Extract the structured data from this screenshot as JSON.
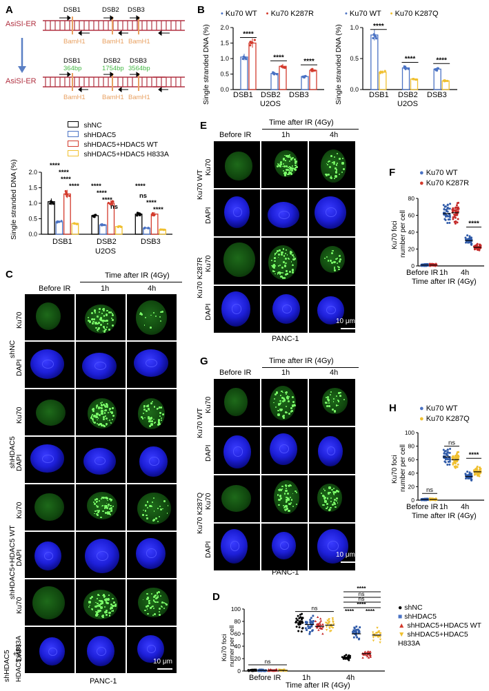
{
  "panelA": {
    "letter": "A",
    "asisi": "AsiSI-ER",
    "dsb": [
      "DSB1",
      "DSB2",
      "DSB3"
    ],
    "bamh1": "BamH1",
    "sizes": [
      "364bp",
      "1754bp",
      "3564bp"
    ],
    "legend": [
      "shNC",
      "shHDAC5",
      "shHDAC5+HDAC5 WT",
      "shHDAC5+HDAC5 H833A"
    ],
    "ylabel": "Single stranded DNA (%)",
    "xcats": [
      "DSB1",
      "DSB2",
      "DSB3"
    ],
    "xsub": "U2OS",
    "sig": [
      "****",
      "****",
      "****",
      "****",
      "****",
      "****",
      "****",
      "ns",
      "****",
      "ns",
      "****",
      "****"
    ],
    "colors": [
      "#000000",
      "#4a72c4",
      "#d33a2c",
      "#f0c030"
    ]
  },
  "panelB": {
    "letter": "B",
    "left_legend": [
      "Ku70 WT",
      "Ku70 K287R"
    ],
    "right_legend": [
      "Ku70 WT",
      "Ku70 K287Q"
    ],
    "ylabel": "Single stranded DNA (%)",
    "xcats": [
      "DSB1",
      "DSB2",
      "DSB3"
    ],
    "xsub": "U2OS",
    "sig": "****",
    "colors": {
      "wt": "#4a72c4",
      "k287r": "#d33a2c",
      "k287q": "#f0c030"
    }
  },
  "panelC": {
    "letter": "C",
    "time_header": "Time after IR (4Gy)",
    "cols": [
      "Before IR",
      "1h",
      "4h"
    ],
    "row_labels": [
      "Ku70",
      "DAPI"
    ],
    "groups": [
      "shNC",
      "shHDAC5",
      "shHDAC5+HDAC5 WT",
      "shHDAC5\n+\nHDAC5 H833A"
    ],
    "group_l1": "shHDAC5",
    "group_l2": "+",
    "group_l3": "HDAC5 H833A",
    "scale": "10 μm",
    "cellline": "PANC-1"
  },
  "panelD": {
    "letter": "D",
    "ylabel1": "Ku70 foci",
    "ylabel2": "numer per cell",
    "xcats": [
      "Before IR",
      "1h",
      "4h"
    ],
    "xtitle": "Time after IR (4Gy)",
    "legend": [
      "shNC",
      "shHDAC5",
      "shHDAC5+HDAC5 WT",
      "shHDAC5+HDAC5 H833A"
    ],
    "ns": "ns",
    "stars": "****"
  },
  "panelE": {
    "letter": "E",
    "time_header": "Time after IR (4Gy)",
    "cols": [
      "Before IR",
      "1h",
      "4h"
    ],
    "row_labels": [
      "Ku70",
      "DAPI"
    ],
    "groups": [
      "Ku70 WT",
      "Ku70 K287R"
    ],
    "scale": "10 μm",
    "cellline": "PANC-1"
  },
  "panelF": {
    "letter": "F",
    "legend": [
      "Ku70 WT",
      "Ku70 K287R"
    ],
    "ylabel1": "Ku70 foci",
    "ylabel2": "number per cell",
    "xcats": [
      "Before IR",
      "1h",
      "4h"
    ],
    "xtitle": "Time after IR (4Gy)",
    "sig": "****"
  },
  "panelG": {
    "letter": "G",
    "time_header": "Time after IR (4Gy)",
    "cols": [
      "Before IR",
      "1h",
      "4h"
    ],
    "row_labels": [
      "Ku70",
      "DAPI"
    ],
    "groups": [
      "Ku70 WT",
      "Ku70 K287Q"
    ],
    "scale": "10 μm",
    "cellline": "PANC-1"
  },
  "panelH": {
    "letter": "H",
    "legend": [
      "Ku70 WT",
      "Ku70 K287Q"
    ],
    "ylabel1": "Ku70 foci",
    "ylabel2": "number per cell",
    "xcats": [
      "Before IR",
      "1h",
      "4h"
    ],
    "xtitle": "Time after IR (4Gy)",
    "sig": [
      "ns",
      "ns",
      "****"
    ]
  },
  "chart_data": [
    {
      "type": "bar",
      "panel": "A",
      "categories": [
        "DSB1",
        "DSB2",
        "DSB3"
      ],
      "series": [
        {
          "name": "shNC",
          "values": [
            1.05,
            0.6,
            0.65
          ]
        },
        {
          "name": "shHDAC5",
          "values": [
            0.4,
            0.3,
            0.2
          ]
        },
        {
          "name": "shHDAC5+HDAC5 WT",
          "values": [
            1.3,
            1.0,
            0.65
          ]
        },
        {
          "name": "shHDAC5+HDAC5 H833A",
          "values": [
            0.35,
            0.25,
            0.15
          ]
        }
      ],
      "ylabel": "Single stranded DNA (%)",
      "ylim": [
        0,
        2.0
      ],
      "yticks": [
        0.0,
        0.5,
        1.0,
        1.5,
        2.0
      ]
    },
    {
      "type": "bar",
      "panel": "B-left",
      "categories": [
        "DSB1",
        "DSB2",
        "DSB3"
      ],
      "series": [
        {
          "name": "Ku70 WT",
          "values": [
            1.05,
            0.52,
            0.42
          ]
        },
        {
          "name": "Ku70 K287R",
          "values": [
            1.5,
            0.75,
            0.62
          ]
        }
      ],
      "ylabel": "Single stranded DNA (%)",
      "ylim": [
        0,
        2.0
      ],
      "yticks": [
        0.0,
        0.5,
        1.0,
        1.5,
        2.0
      ]
    },
    {
      "type": "bar",
      "panel": "B-right",
      "categories": [
        "DSB1",
        "DSB2",
        "DSB3"
      ],
      "series": [
        {
          "name": "Ku70 WT",
          "values": [
            0.88,
            0.35,
            0.33
          ]
        },
        {
          "name": "Ku70 K287Q",
          "values": [
            0.28,
            0.17,
            0.14
          ]
        }
      ],
      "ylabel": "Single stranded DNA (%)",
      "ylim": [
        0,
        1.0
      ],
      "yticks": [
        0.0,
        0.5,
        1.0
      ]
    },
    {
      "type": "scatter",
      "panel": "D",
      "categories": [
        "Before IR",
        "1h",
        "4h"
      ],
      "series": [
        {
          "name": "shNC",
          "values": [
            1,
            78,
            22
          ]
        },
        {
          "name": "shHDAC5",
          "values": [
            1,
            75,
            60
          ]
        },
        {
          "name": "shHDAC5+HDAC5 WT",
          "values": [
            1,
            72,
            28
          ]
        },
        {
          "name": "shHDAC5+HDAC5 H833A",
          "values": [
            1,
            74,
            58
          ]
        }
      ],
      "ylabel": "Ku70 foci numer per cell",
      "xlabel": "Time after IR (4Gy)",
      "ylim": [
        0,
        100
      ],
      "yticks": [
        0,
        20,
        40,
        60,
        80,
        100
      ]
    },
    {
      "type": "scatter",
      "panel": "F",
      "categories": [
        "Before IR",
        "1h",
        "4h"
      ],
      "series": [
        {
          "name": "Ku70 WT",
          "values": [
            1,
            62,
            30
          ]
        },
        {
          "name": "Ku70 K287R",
          "values": [
            1,
            63,
            22
          ]
        }
      ],
      "ylabel": "Ku70 foci number per cell",
      "xlabel": "Time after IR (4Gy)",
      "ylim": [
        0,
        80
      ],
      "yticks": [
        0,
        20,
        40,
        60,
        80
      ]
    },
    {
      "type": "scatter",
      "panel": "H",
      "categories": [
        "Before IR",
        "1h",
        "4h"
      ],
      "series": [
        {
          "name": "Ku70 WT",
          "values": [
            1,
            64,
            35
          ]
        },
        {
          "name": "Ku70 K287Q",
          "values": [
            1,
            60,
            42
          ]
        }
      ],
      "ylabel": "Ku70 foci number per cell",
      "xlabel": "Time after IR (4Gy)",
      "ylim": [
        0,
        100
      ],
      "yticks": [
        0,
        20,
        40,
        60,
        80,
        100
      ]
    }
  ]
}
